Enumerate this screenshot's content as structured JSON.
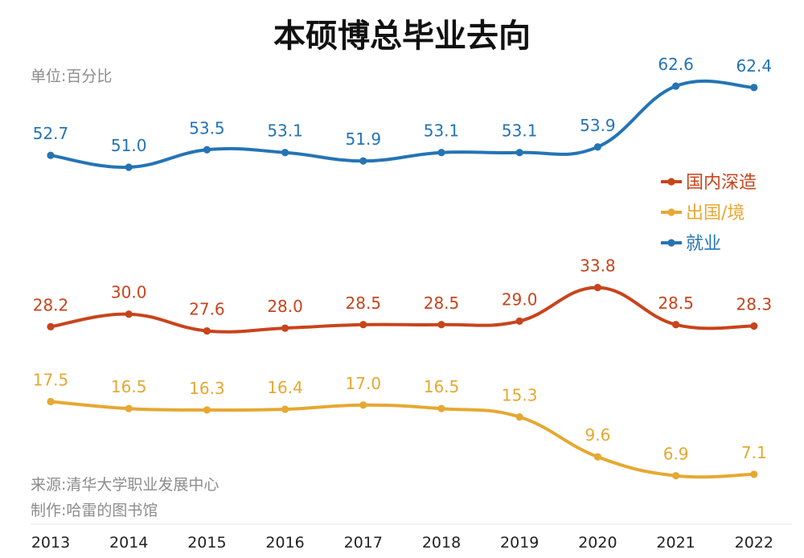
{
  "chart_data": {
    "type": "line",
    "title": "本硕博总毕业去向",
    "unit_label": "单位:百分比",
    "source": "来源:清华大学职业发展中心",
    "author": "制作:哈雷的图书馆",
    "xlabel": "",
    "ylabel": "",
    "ylim": [
      0,
      70
    ],
    "categories": [
      "2013",
      "2014",
      "2015",
      "2016",
      "2017",
      "2018",
      "2019",
      "2020",
      "2021",
      "2022"
    ],
    "series": [
      {
        "name": "就业",
        "color": "#2474b5",
        "values": [
          52.7,
          51.0,
          53.5,
          53.1,
          51.9,
          53.1,
          53.1,
          53.9,
          62.6,
          62.4
        ],
        "labels": [
          "52.7",
          "51.0",
          "53.5",
          "53.1",
          "51.9",
          "53.1",
          "53.1",
          "53.9",
          "62.6",
          "62.4"
        ]
      },
      {
        "name": "国内深造",
        "color": "#c8441c",
        "values": [
          28.2,
          30.0,
          27.6,
          28.0,
          28.5,
          28.5,
          29.0,
          33.8,
          28.5,
          28.3
        ],
        "labels": [
          "28.2",
          "30.0",
          "27.6",
          "28.0",
          "28.5",
          "28.5",
          "29.0",
          "33.8",
          "28.5",
          "28.3"
        ]
      },
      {
        "name": "出国/境",
        "color": "#e6a832",
        "values": [
          17.5,
          16.5,
          16.3,
          16.4,
          17.0,
          16.5,
          15.3,
          9.6,
          6.9,
          7.1
        ],
        "labels": [
          "17.5",
          "16.5",
          "16.3",
          "16.4",
          "17.0",
          "16.5",
          "15.3",
          "9.6",
          "6.9",
          "7.1"
        ]
      }
    ],
    "legend": {
      "position": "right",
      "order": [
        "国内深造",
        "出国/境",
        "就业"
      ]
    }
  }
}
